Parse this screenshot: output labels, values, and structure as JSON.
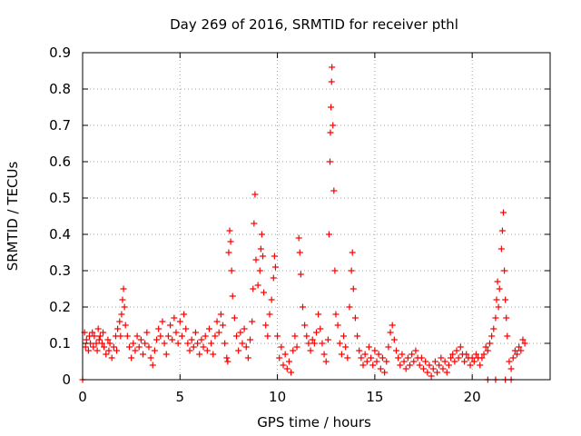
{
  "chart_data": {
    "type": "scatter",
    "title": "Day 269 of 2016, SRMTID for receiver pthl",
    "xlabel": "GPS time / hours",
    "ylabel": "SRMTID / TECUs",
    "xlim": [
      0,
      24
    ],
    "ylim": [
      0,
      0.9
    ],
    "grid": true,
    "marker": "plus",
    "color": "#ff0000",
    "x_ticks": [
      0,
      5,
      10,
      15,
      20
    ],
    "x_tick_labels": [
      "0",
      "5",
      "10",
      "15",
      "20"
    ],
    "y_ticks": [
      0,
      0.1,
      0.2,
      0.3,
      0.4,
      0.5,
      0.6,
      0.7,
      0.8,
      0.9
    ],
    "y_tick_labels": [
      "0",
      "0.1",
      "0.2",
      "0.3",
      "0.4",
      "0.5",
      "0.6",
      "0.7",
      "0.8",
      "0.9"
    ],
    "series": [
      {
        "name": "SRMTID",
        "points": [
          [
            0.0,
            0.0
          ],
          [
            0.1,
            0.13
          ],
          [
            0.15,
            0.09
          ],
          [
            0.2,
            0.11
          ],
          [
            0.3,
            0.08
          ],
          [
            0.35,
            0.12
          ],
          [
            0.4,
            0.1
          ],
          [
            0.5,
            0.13
          ],
          [
            0.55,
            0.09
          ],
          [
            0.6,
            0.12
          ],
          [
            0.7,
            0.1
          ],
          [
            0.75,
            0.08
          ],
          [
            0.8,
            0.14
          ],
          [
            0.85,
            0.11
          ],
          [
            0.9,
            0.12
          ],
          [
            1.0,
            0.1
          ],
          [
            1.05,
            0.13
          ],
          [
            1.1,
            0.09
          ],
          [
            1.2,
            0.07
          ],
          [
            1.3,
            0.11
          ],
          [
            1.35,
            0.08
          ],
          [
            1.4,
            0.1
          ],
          [
            1.5,
            0.06
          ],
          [
            1.6,
            0.09
          ],
          [
            1.7,
            0.12
          ],
          [
            1.75,
            0.08
          ],
          [
            1.8,
            0.14
          ],
          [
            1.9,
            0.16
          ],
          [
            1.95,
            0.12
          ],
          [
            2.0,
            0.18
          ],
          [
            2.05,
            0.22
          ],
          [
            2.1,
            0.25
          ],
          [
            2.15,
            0.2
          ],
          [
            2.2,
            0.15
          ],
          [
            2.3,
            0.12
          ],
          [
            2.4,
            0.09
          ],
          [
            2.5,
            0.06
          ],
          [
            2.6,
            0.1
          ],
          [
            2.7,
            0.08
          ],
          [
            2.8,
            0.12
          ],
          [
            2.9,
            0.09
          ],
          [
            3.0,
            0.11
          ],
          [
            3.1,
            0.07
          ],
          [
            3.2,
            0.1
          ],
          [
            3.3,
            0.13
          ],
          [
            3.4,
            0.09
          ],
          [
            3.5,
            0.06
          ],
          [
            3.6,
            0.04
          ],
          [
            3.7,
            0.08
          ],
          [
            3.8,
            0.11
          ],
          [
            3.9,
            0.14
          ],
          [
            4.0,
            0.12
          ],
          [
            4.1,
            0.16
          ],
          [
            4.2,
            0.1
          ],
          [
            4.3,
            0.07
          ],
          [
            4.4,
            0.12
          ],
          [
            4.5,
            0.15
          ],
          [
            4.6,
            0.11
          ],
          [
            4.7,
            0.17
          ],
          [
            4.8,
            0.13
          ],
          [
            4.9,
            0.1
          ],
          [
            5.0,
            0.16
          ],
          [
            5.1,
            0.12
          ],
          [
            5.2,
            0.18
          ],
          [
            5.3,
            0.14
          ],
          [
            5.4,
            0.1
          ],
          [
            5.5,
            0.08
          ],
          [
            5.6,
            0.11
          ],
          [
            5.7,
            0.09
          ],
          [
            5.8,
            0.13
          ],
          [
            5.9,
            0.1
          ],
          [
            6.0,
            0.07
          ],
          [
            6.1,
            0.11
          ],
          [
            6.2,
            0.09
          ],
          [
            6.3,
            0.12
          ],
          [
            6.4,
            0.08
          ],
          [
            6.5,
            0.14
          ],
          [
            6.6,
            0.1
          ],
          [
            6.7,
            0.07
          ],
          [
            6.8,
            0.12
          ],
          [
            6.9,
            0.16
          ],
          [
            7.0,
            0.13
          ],
          [
            7.1,
            0.18
          ],
          [
            7.2,
            0.15
          ],
          [
            7.3,
            0.1
          ],
          [
            7.4,
            0.06
          ],
          [
            7.45,
            0.05
          ],
          [
            7.5,
            0.35
          ],
          [
            7.55,
            0.41
          ],
          [
            7.6,
            0.38
          ],
          [
            7.65,
            0.3
          ],
          [
            7.7,
            0.23
          ],
          [
            7.8,
            0.17
          ],
          [
            7.9,
            0.12
          ],
          [
            8.0,
            0.08
          ],
          [
            8.1,
            0.13
          ],
          [
            8.2,
            0.1
          ],
          [
            8.3,
            0.14
          ],
          [
            8.4,
            0.09
          ],
          [
            8.5,
            0.06
          ],
          [
            8.6,
            0.11
          ],
          [
            8.7,
            0.16
          ],
          [
            8.75,
            0.25
          ],
          [
            8.8,
            0.43
          ],
          [
            8.85,
            0.51
          ],
          [
            8.9,
            0.33
          ],
          [
            9.0,
            0.26
          ],
          [
            9.1,
            0.3
          ],
          [
            9.15,
            0.36
          ],
          [
            9.2,
            0.4
          ],
          [
            9.25,
            0.34
          ],
          [
            9.3,
            0.24
          ],
          [
            9.4,
            0.15
          ],
          [
            9.5,
            0.12
          ],
          [
            9.6,
            0.18
          ],
          [
            9.7,
            0.22
          ],
          [
            9.8,
            0.28
          ],
          [
            9.85,
            0.34
          ],
          [
            9.9,
            0.31
          ],
          [
            10.0,
            0.12
          ],
          [
            10.1,
            0.06
          ],
          [
            10.2,
            0.09
          ],
          [
            10.3,
            0.04
          ],
          [
            10.4,
            0.07
          ],
          [
            10.5,
            0.03
          ],
          [
            10.6,
            0.05
          ],
          [
            10.7,
            0.02
          ],
          [
            10.8,
            0.08
          ],
          [
            10.9,
            0.12
          ],
          [
            11.0,
            0.09
          ],
          [
            11.1,
            0.39
          ],
          [
            11.15,
            0.35
          ],
          [
            11.2,
            0.29
          ],
          [
            11.3,
            0.2
          ],
          [
            11.4,
            0.15
          ],
          [
            11.5,
            0.12
          ],
          [
            11.6,
            0.1
          ],
          [
            11.7,
            0.08
          ],
          [
            11.8,
            0.11
          ],
          [
            11.9,
            0.1
          ],
          [
            12.0,
            0.13
          ],
          [
            12.1,
            0.18
          ],
          [
            12.2,
            0.14
          ],
          [
            12.3,
            0.1
          ],
          [
            12.4,
            0.07
          ],
          [
            12.5,
            0.05
          ],
          [
            12.6,
            0.11
          ],
          [
            12.65,
            0.4
          ],
          [
            12.7,
            0.6
          ],
          [
            12.72,
            0.68
          ],
          [
            12.75,
            0.75
          ],
          [
            12.78,
            0.82
          ],
          [
            12.8,
            0.86
          ],
          [
            12.85,
            0.7
          ],
          [
            12.9,
            0.52
          ],
          [
            12.95,
            0.3
          ],
          [
            13.0,
            0.18
          ],
          [
            13.1,
            0.15
          ],
          [
            13.2,
            0.1
          ],
          [
            13.3,
            0.07
          ],
          [
            13.4,
            0.12
          ],
          [
            13.5,
            0.09
          ],
          [
            13.6,
            0.06
          ],
          [
            13.7,
            0.2
          ],
          [
            13.8,
            0.3
          ],
          [
            13.85,
            0.35
          ],
          [
            13.9,
            0.25
          ],
          [
            14.0,
            0.17
          ],
          [
            14.1,
            0.12
          ],
          [
            14.2,
            0.08
          ],
          [
            14.3,
            0.06
          ],
          [
            14.4,
            0.04
          ],
          [
            14.5,
            0.07
          ],
          [
            14.6,
            0.05
          ],
          [
            14.7,
            0.09
          ],
          [
            14.8,
            0.06
          ],
          [
            14.9,
            0.04
          ],
          [
            15.0,
            0.08
          ],
          [
            15.1,
            0.05
          ],
          [
            15.2,
            0.07
          ],
          [
            15.3,
            0.03
          ],
          [
            15.4,
            0.06
          ],
          [
            15.5,
            0.02
          ],
          [
            15.6,
            0.05
          ],
          [
            15.7,
            0.09
          ],
          [
            15.8,
            0.13
          ],
          [
            15.9,
            0.15
          ],
          [
            16.0,
            0.11
          ],
          [
            16.1,
            0.08
          ],
          [
            16.2,
            0.06
          ],
          [
            16.3,
            0.04
          ],
          [
            16.4,
            0.07
          ],
          [
            16.5,
            0.05
          ],
          [
            16.6,
            0.03
          ],
          [
            16.7,
            0.06
          ],
          [
            16.8,
            0.04
          ],
          [
            16.9,
            0.07
          ],
          [
            17.0,
            0.05
          ],
          [
            17.1,
            0.08
          ],
          [
            17.2,
            0.06
          ],
          [
            17.3,
            0.04
          ],
          [
            17.4,
            0.06
          ],
          [
            17.5,
            0.03
          ],
          [
            17.6,
            0.05
          ],
          [
            17.7,
            0.02
          ],
          [
            17.8,
            0.04
          ],
          [
            17.9,
            0.01
          ],
          [
            18.0,
            0.03
          ],
          [
            18.1,
            0.05
          ],
          [
            18.2,
            0.02
          ],
          [
            18.3,
            0.04
          ],
          [
            18.4,
            0.06
          ],
          [
            18.5,
            0.03
          ],
          [
            18.6,
            0.05
          ],
          [
            18.7,
            0.02
          ],
          [
            18.8,
            0.04
          ],
          [
            18.9,
            0.06
          ],
          [
            19.0,
            0.07
          ],
          [
            19.1,
            0.05
          ],
          [
            19.2,
            0.08
          ],
          [
            19.3,
            0.06
          ],
          [
            19.4,
            0.09
          ],
          [
            19.5,
            0.07
          ],
          [
            19.6,
            0.05
          ],
          [
            19.7,
            0.07
          ],
          [
            19.8,
            0.06
          ],
          [
            19.9,
            0.04
          ],
          [
            20.0,
            0.06
          ],
          [
            20.1,
            0.05
          ],
          [
            20.2,
            0.07
          ],
          [
            20.3,
            0.06
          ],
          [
            20.4,
            0.04
          ],
          [
            20.5,
            0.06
          ],
          [
            20.6,
            0.07
          ],
          [
            20.7,
            0.09
          ],
          [
            20.8,
            0.08
          ],
          [
            20.9,
            0.1
          ],
          [
            21.0,
            0.12
          ],
          [
            21.1,
            0.14
          ],
          [
            21.2,
            0.17
          ],
          [
            21.25,
            0.22
          ],
          [
            21.3,
            0.27
          ],
          [
            21.35,
            0.2
          ],
          [
            21.4,
            0.25
          ],
          [
            21.5,
            0.36
          ],
          [
            21.55,
            0.41
          ],
          [
            21.6,
            0.46
          ],
          [
            21.65,
            0.3
          ],
          [
            21.7,
            0.22
          ],
          [
            21.75,
            0.17
          ],
          [
            21.8,
            0.12
          ],
          [
            21.9,
            0.05
          ],
          [
            22.0,
            0.03
          ],
          [
            22.1,
            0.06
          ],
          [
            22.2,
            0.08
          ],
          [
            22.3,
            0.07
          ],
          [
            22.4,
            0.09
          ],
          [
            22.5,
            0.08
          ],
          [
            22.6,
            0.11
          ],
          [
            22.7,
            0.1
          ],
          [
            20.8,
            0.0
          ],
          [
            21.2,
            0.0
          ],
          [
            21.7,
            0.0
          ],
          [
            22.0,
            0.0
          ]
        ]
      }
    ]
  }
}
